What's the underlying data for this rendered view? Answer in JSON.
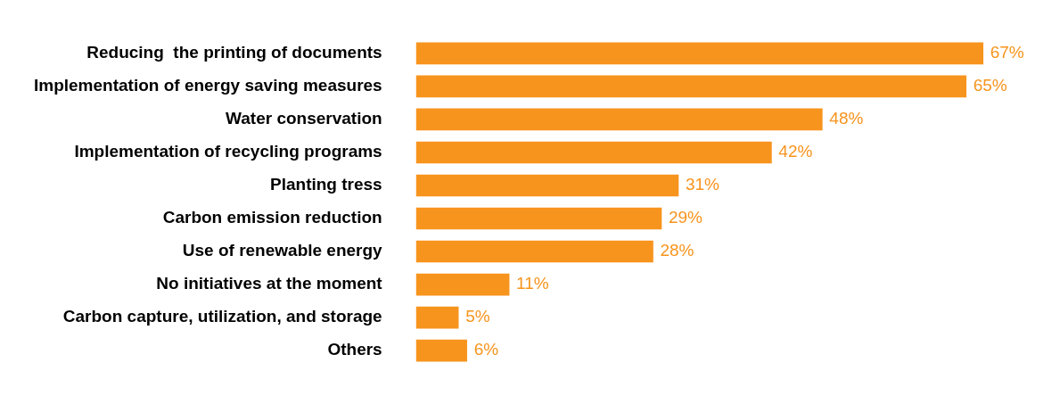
{
  "chart_data": {
    "type": "bar",
    "orientation": "horizontal",
    "categories": [
      "Reducing  the printing of documents",
      "Implementation of energy saving measures",
      "Water conservation",
      "Implementation of recycling programs",
      "Planting tress",
      "Carbon emission reduction",
      "Use of renewable energy",
      "No initiatives at the moment",
      "Carbon capture, utilization, and storage",
      "Others"
    ],
    "values": [
      67,
      65,
      48,
      42,
      31,
      29,
      28,
      11,
      5,
      6
    ],
    "value_labels": [
      "67%",
      "65%",
      "48%",
      "42%",
      "31%",
      "29%",
      "28%",
      "11%",
      "5%",
      "6%"
    ],
    "color": "#f7941d"
  }
}
